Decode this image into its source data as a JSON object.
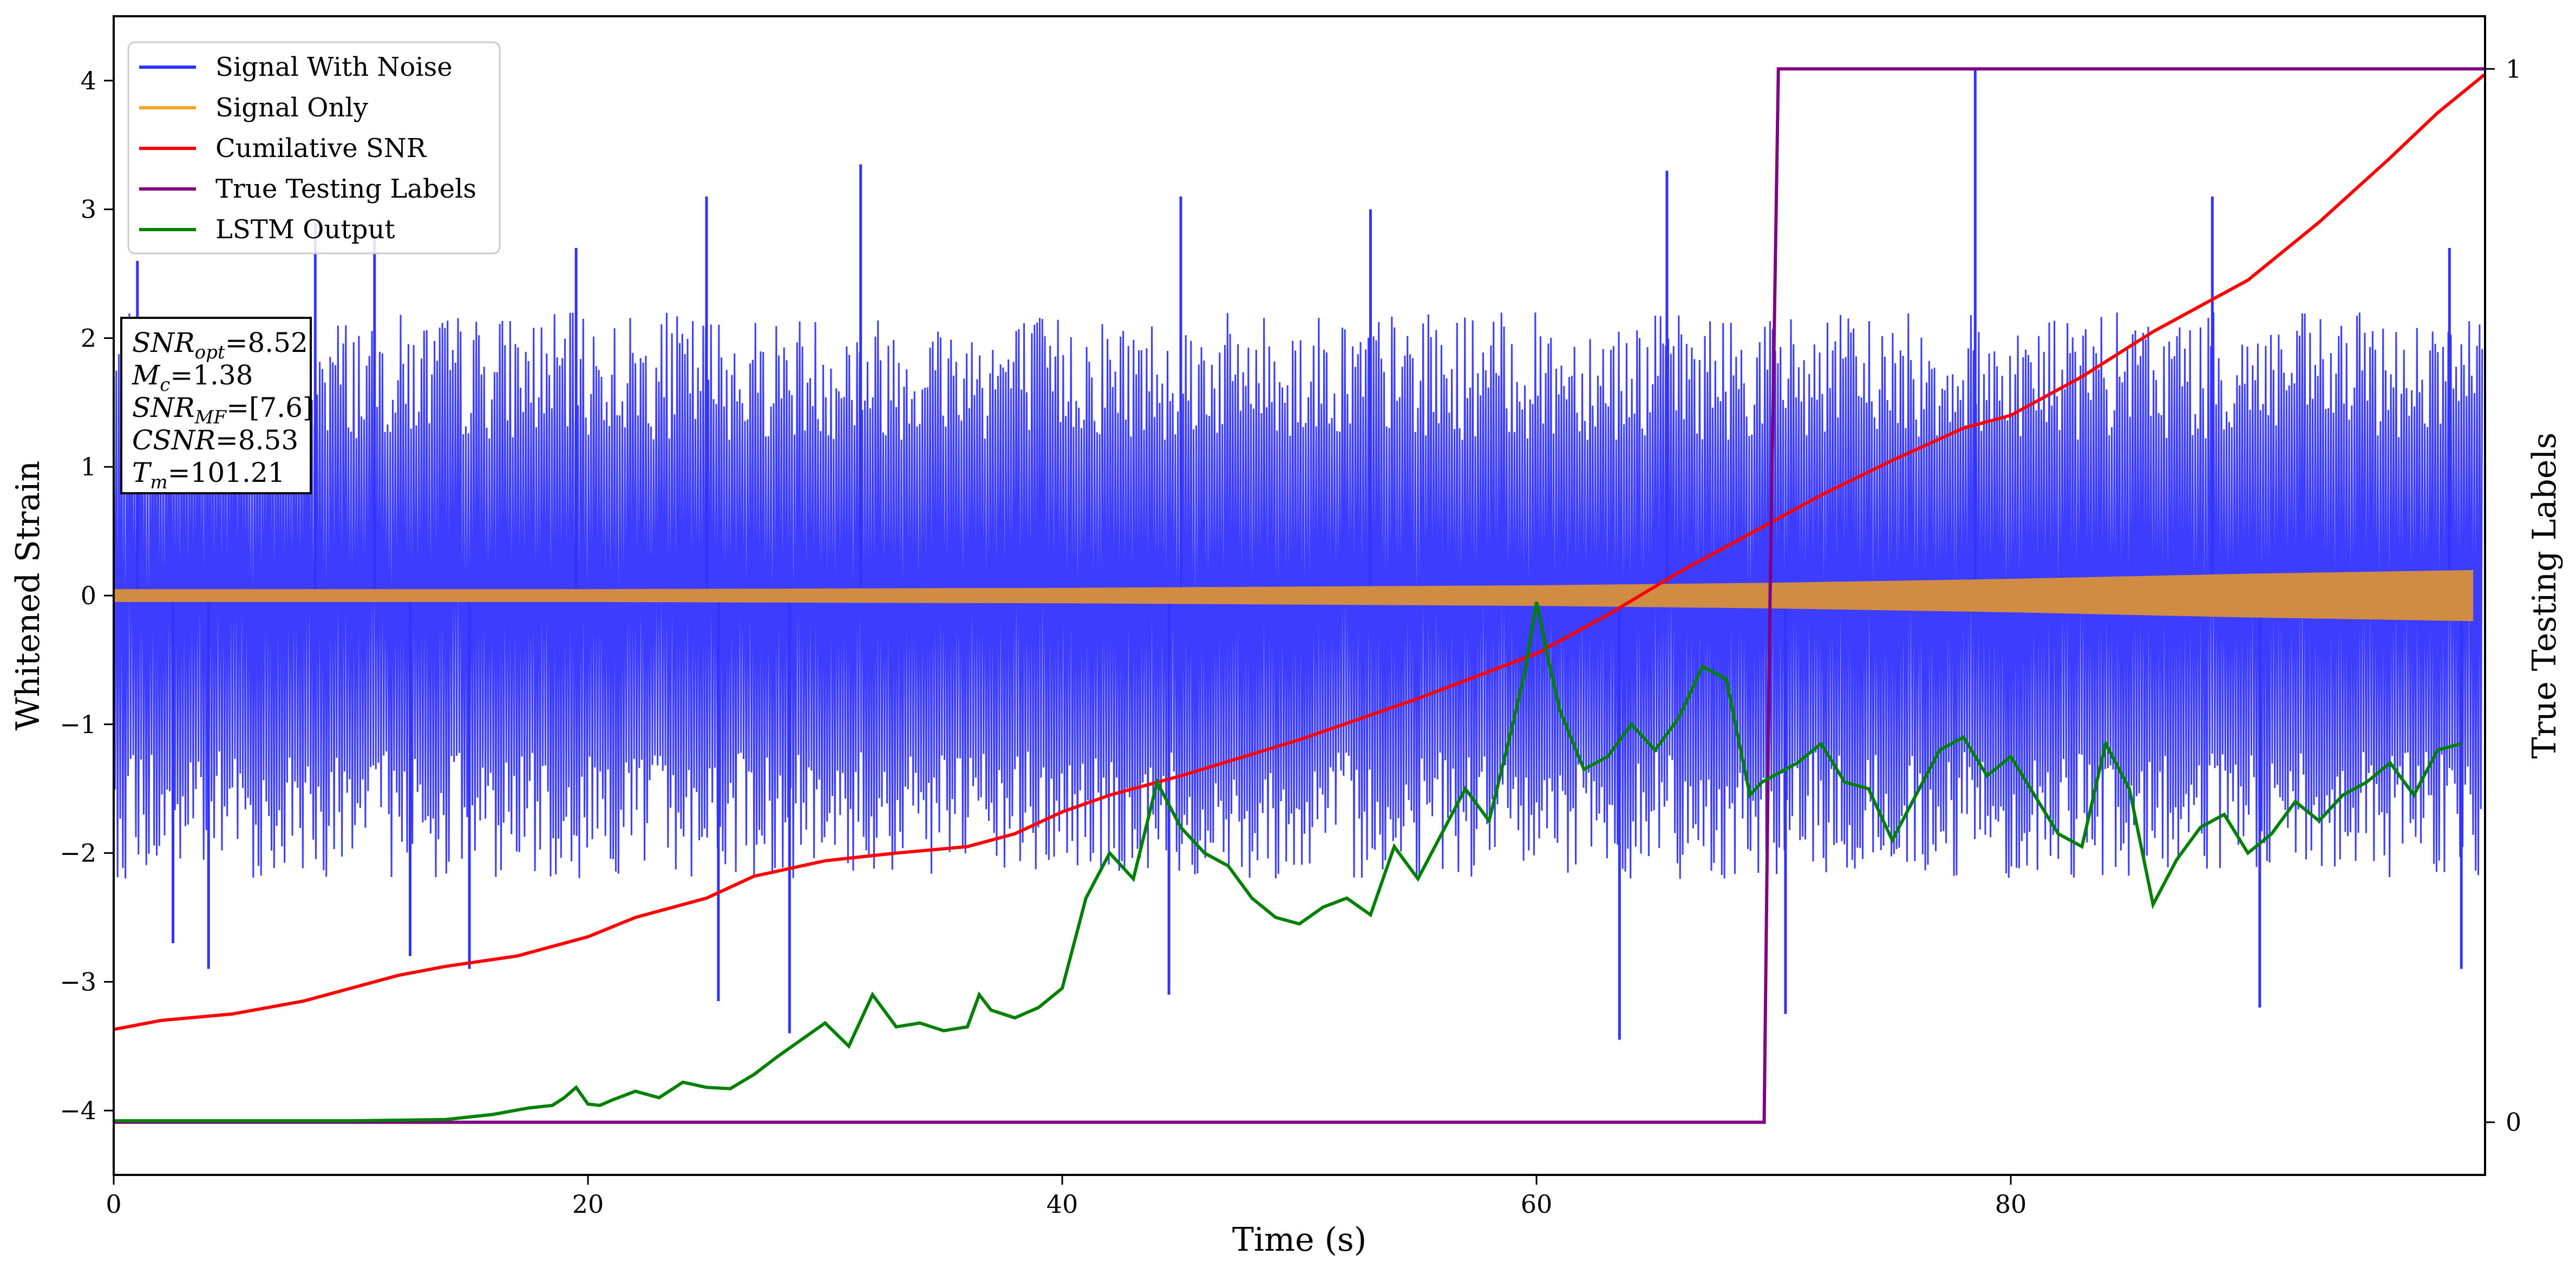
{
  "chart_data": {
    "type": "line",
    "xlabel": "Time (s)",
    "ylabel": "Whitened Strain",
    "y2label": "True Testing Labels",
    "xlim": [
      0,
      100
    ],
    "ylim": [
      -4.5,
      4.5
    ],
    "y2lim": [
      -0.05,
      1.05
    ],
    "xticks": [
      0,
      20,
      40,
      60,
      80
    ],
    "yticks": [
      -4,
      -3,
      -2,
      -1,
      0,
      1,
      2,
      3,
      4
    ],
    "y2ticks": [
      0,
      1
    ],
    "legend_position": "top-left",
    "legend": [
      {
        "label": "Signal With Noise",
        "color": "#3333ff"
      },
      {
        "label": "Signal Only",
        "color": "#f5a623"
      },
      {
        "label": "Cumilative SNR",
        "color": "#ff0000"
      },
      {
        "label": "True Testing Labels",
        "color": "#800080"
      },
      {
        "label": "LSTM Output",
        "color": "#008000"
      }
    ],
    "info_box": [
      {
        "main": "SNR",
        "sub": "opt",
        "value": "=8.52"
      },
      {
        "main": "M",
        "sub": "c",
        "value": "=1.38"
      },
      {
        "main": "SNR",
        "sub": "MF",
        "value": "=[7.6]"
      },
      {
        "main": "CSNR",
        "sub": "",
        "value": "=8.53"
      },
      {
        "main": "T",
        "sub": "m",
        "value": "=101.21"
      }
    ],
    "series": [
      {
        "name": "Signal With Noise",
        "axis": "left",
        "color": "#3333ff",
        "note": "dense noise band, roughly -2.5 to 2.6 with peaks near +4.1 and -3.45",
        "band_outer": 2.2,
        "spikes_up": [
          [
            1,
            2.6
          ],
          [
            8.5,
            2.9
          ],
          [
            11,
            2.8
          ],
          [
            19.5,
            2.7
          ],
          [
            25,
            3.1
          ],
          [
            31.5,
            3.35
          ],
          [
            45,
            3.1
          ],
          [
            53,
            3.0
          ],
          [
            65.5,
            3.3
          ],
          [
            78.5,
            4.1
          ],
          [
            88.5,
            3.1
          ],
          [
            98.5,
            2.7
          ]
        ],
        "spikes_down": [
          [
            2.5,
            -2.7
          ],
          [
            4,
            -2.9
          ],
          [
            12.5,
            -2.8
          ],
          [
            15,
            -2.9
          ],
          [
            25.5,
            -3.15
          ],
          [
            28.5,
            -3.4
          ],
          [
            44.5,
            -3.1
          ],
          [
            63.5,
            -3.45
          ],
          [
            70.5,
            -3.25
          ],
          [
            90.5,
            -3.2
          ],
          [
            99,
            -2.9
          ]
        ]
      },
      {
        "name": "Signal Only",
        "axis": "left",
        "color": "#f5a623",
        "x": [
          0,
          10,
          20,
          30,
          40,
          50,
          60,
          70,
          80,
          90,
          100
        ],
        "amplitude": [
          0.05,
          0.05,
          0.05,
          0.055,
          0.06,
          0.07,
          0.08,
          0.1,
          0.13,
          0.17,
          0.2
        ]
      },
      {
        "name": "Cumilative SNR",
        "axis": "left",
        "color": "#ff0000",
        "x": [
          0,
          2,
          5,
          8,
          10,
          12,
          14,
          17,
          20,
          22,
          25,
          27,
          30,
          33,
          36,
          38,
          40,
          42,
          45,
          50,
          55,
          60,
          63,
          66,
          69,
          72,
          75,
          78,
          80,
          83,
          86,
          90,
          93,
          96,
          98,
          100
        ],
        "y": [
          -3.37,
          -3.3,
          -3.25,
          -3.15,
          -3.05,
          -2.95,
          -2.88,
          -2.8,
          -2.65,
          -2.5,
          -2.35,
          -2.18,
          -2.06,
          -2.0,
          -1.95,
          -1.85,
          -1.68,
          -1.55,
          -1.4,
          -1.12,
          -0.8,
          -0.45,
          -0.15,
          0.18,
          0.48,
          0.78,
          1.05,
          1.3,
          1.4,
          1.7,
          2.05,
          2.45,
          2.9,
          3.4,
          3.75,
          4.05
        ]
      },
      {
        "name": "True Testing Labels",
        "axis": "right",
        "color": "#800080",
        "x": [
          0,
          69.6,
          69.85,
          70.2,
          100
        ],
        "y": [
          0,
          0,
          0.5,
          1,
          1
        ]
      },
      {
        "name": "LSTM Output",
        "axis": "left",
        "color": "#008000",
        "x": [
          0,
          5,
          10,
          14,
          16,
          17.5,
          18.5,
          19,
          19.5,
          20,
          20.5,
          21,
          22,
          23,
          24,
          25,
          26,
          27,
          28,
          29,
          30,
          31,
          32,
          33,
          34,
          35,
          36,
          36.5,
          37,
          38,
          39,
          40,
          41,
          42,
          43,
          44,
          45,
          46,
          47,
          48,
          49,
          50,
          51,
          52,
          53,
          54,
          55,
          56,
          57,
          58,
          59,
          59.5,
          60,
          60.5,
          61,
          62,
          63,
          64,
          65,
          66,
          67,
          68,
          69,
          69.5,
          70,
          71,
          72,
          73,
          74,
          75,
          76,
          77,
          78,
          79,
          80,
          81,
          82,
          83,
          84,
          85,
          86,
          87,
          88,
          89,
          90,
          91,
          92,
          93,
          94,
          95,
          96,
          97,
          98,
          99
        ],
        "y": [
          -4.08,
          -4.08,
          -4.08,
          -4.07,
          -4.03,
          -3.98,
          -3.96,
          -3.9,
          -3.82,
          -3.95,
          -3.96,
          -3.92,
          -3.85,
          -3.9,
          -3.78,
          -3.82,
          -3.83,
          -3.72,
          -3.58,
          -3.45,
          -3.32,
          -3.5,
          -3.1,
          -3.35,
          -3.32,
          -3.38,
          -3.35,
          -3.1,
          -3.22,
          -3.28,
          -3.2,
          -3.05,
          -2.35,
          -2.0,
          -2.2,
          -1.45,
          -1.8,
          -2.0,
          -2.1,
          -2.35,
          -2.5,
          -2.55,
          -2.42,
          -2.35,
          -2.48,
          -1.95,
          -2.2,
          -1.85,
          -1.5,
          -1.75,
          -1.0,
          -0.6,
          -0.05,
          -0.5,
          -0.9,
          -1.35,
          -1.25,
          -1.0,
          -1.2,
          -0.95,
          -0.55,
          -0.65,
          -1.55,
          -1.45,
          -1.4,
          -1.3,
          -1.15,
          -1.45,
          -1.5,
          -1.9,
          -1.55,
          -1.2,
          -1.1,
          -1.4,
          -1.25,
          -1.55,
          -1.85,
          -1.95,
          -1.15,
          -1.5,
          -2.4,
          -2.05,
          -1.8,
          -1.7,
          -2.0,
          -1.85,
          -1.6,
          -1.75,
          -1.55,
          -1.45,
          -1.3,
          -1.55,
          -1.2,
          -1.15
        ]
      }
    ]
  }
}
